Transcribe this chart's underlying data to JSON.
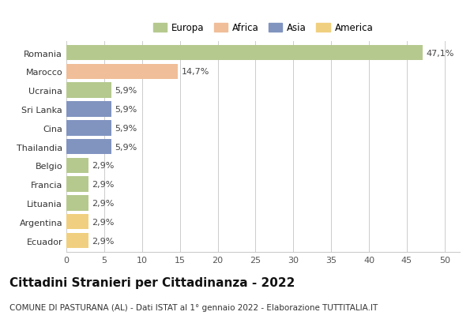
{
  "categories": [
    "Romania",
    "Marocco",
    "Ucraina",
    "Sri Lanka",
    "Cina",
    "Thailandia",
    "Belgio",
    "Francia",
    "Lituania",
    "Argentina",
    "Ecuador"
  ],
  "values": [
    47.1,
    14.7,
    5.9,
    5.9,
    5.9,
    5.9,
    2.9,
    2.9,
    2.9,
    2.9,
    2.9
  ],
  "labels": [
    "47,1%",
    "14,7%",
    "5,9%",
    "5,9%",
    "5,9%",
    "5,9%",
    "2,9%",
    "2,9%",
    "2,9%",
    "2,9%",
    "2,9%"
  ],
  "continent": [
    "Europa",
    "Africa",
    "Europa",
    "Asia",
    "Asia",
    "Asia",
    "Europa",
    "Europa",
    "Europa",
    "America",
    "America"
  ],
  "colors": {
    "Europa": "#b5c98e",
    "Africa": "#f0be99",
    "Asia": "#8194c0",
    "America": "#f0d080"
  },
  "legend_order": [
    "Europa",
    "Africa",
    "Asia",
    "America"
  ],
  "xlim": [
    0,
    52
  ],
  "xticks": [
    0,
    5,
    10,
    15,
    20,
    25,
    30,
    35,
    40,
    45,
    50
  ],
  "title": "Cittadini Stranieri per Cittadinanza - 2022",
  "subtitle": "COMUNE DI PASTURANA (AL) - Dati ISTAT al 1° gennaio 2022 - Elaborazione TUTTITALIA.IT",
  "background_color": "#ffffff",
  "grid_color": "#cccccc",
  "bar_height": 0.82,
  "label_fontsize": 8,
  "title_fontsize": 11,
  "subtitle_fontsize": 7.5,
  "ytick_fontsize": 8,
  "xtick_fontsize": 8,
  "legend_fontsize": 8.5
}
